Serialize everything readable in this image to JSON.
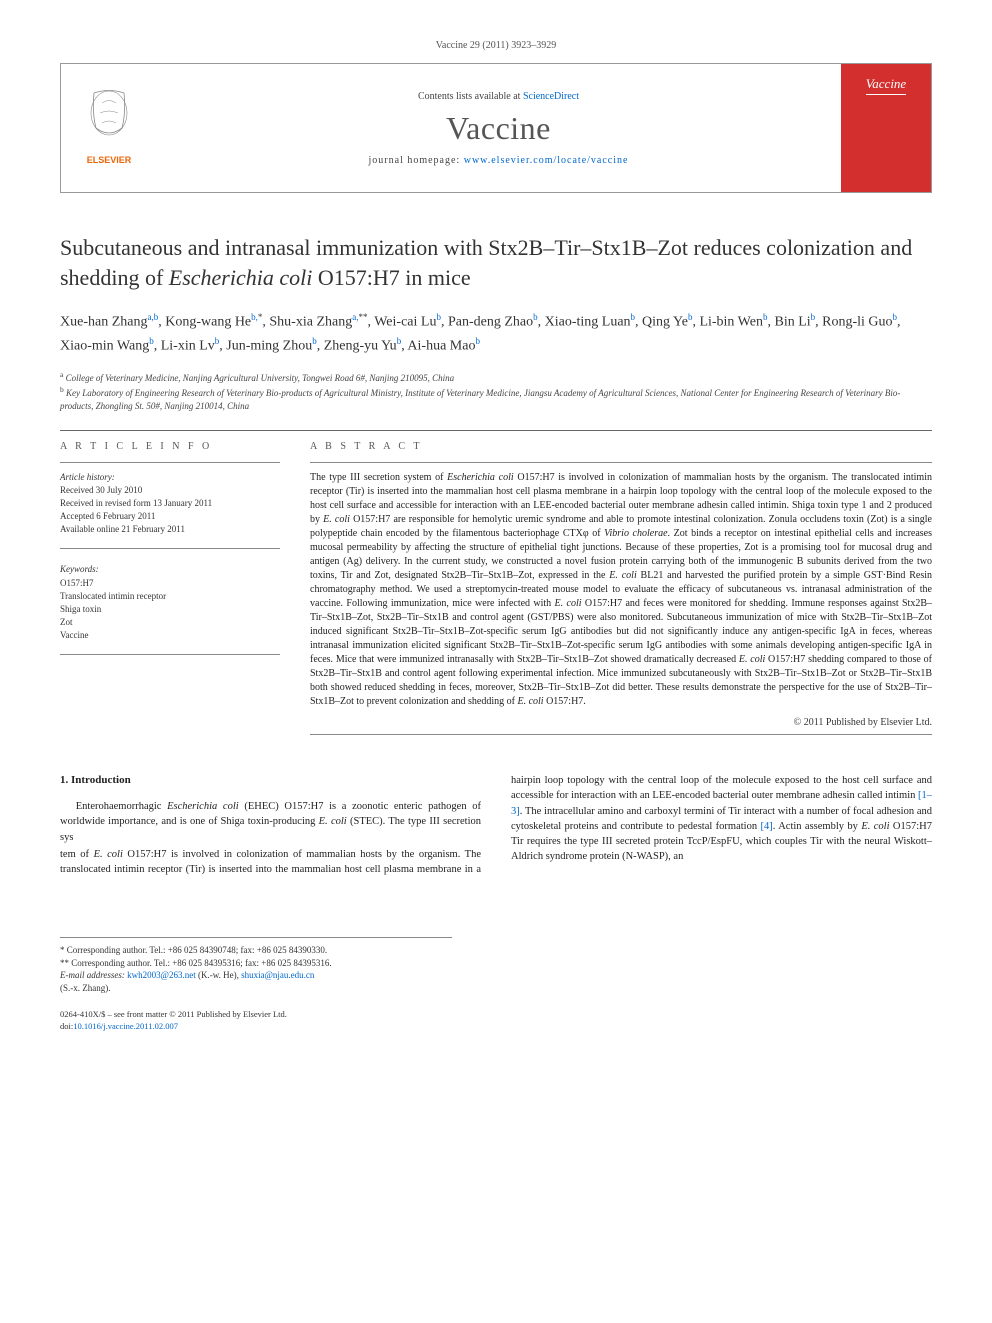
{
  "header": {
    "citation": "Vaccine 29 (2011) 3923–3929",
    "contents_prefix": "Contents lists available at ",
    "contents_link": "ScienceDirect",
    "journal": "Vaccine",
    "homepage_prefix": "journal homepage: ",
    "homepage_url": "www.elsevier.com/locate/vaccine",
    "cover_label": "Vaccine"
  },
  "title_html": "Subcutaneous and intranasal immunization with Stx2B–Tir–Stx1B–Zot reduces colonization and shedding of <em>Escherichia coli</em> O157:H7 in mice",
  "authors_html": "Xue-han Zhang<sup>a,b</sup>, Kong-wang He<sup>b,</sup><sup class='sup-sym'>*</sup>, Shu-xia Zhang<sup>a,</sup><sup class='sup-sym'>**</sup>, Wei-cai Lu<sup>b</sup>, Pan-deng Zhao<sup>b</sup>, Xiao-ting Luan<sup>b</sup>, Qing Ye<sup>b</sup>, Li-bin Wen<sup>b</sup>, Bin Li<sup>b</sup>, Rong-li Guo<sup>b</sup>, Xiao-min Wang<sup>b</sup>, Li-xin Lv<sup>b</sup>, Jun-ming Zhou<sup>b</sup>, Zheng-yu Yu<sup>b</sup>, Ai-hua Mao<sup>b</sup>",
  "affiliations": [
    {
      "sup": "a",
      "text": "College of Veterinary Medicine, Nanjing Agricultural University, Tongwei Road 6#, Nanjing 210095, China"
    },
    {
      "sup": "b",
      "text": "Key Laboratory of Engineering Research of Veterinary Bio-products of Agricultural Ministry, Institute of Veterinary Medicine, Jiangsu Academy of Agricultural Sciences, National Center for Engineering Research of Veterinary Bio-products, Zhongling St. 50#, Nanjing 210014, China"
    }
  ],
  "article_info": {
    "heading": "A R T I C L E   I N F O",
    "history_label": "Article history:",
    "history": [
      "Received 30 July 2010",
      "Received in revised form 13 January 2011",
      "Accepted 6 February 2011",
      "Available online 21 February 2011"
    ],
    "keywords_label": "Keywords:",
    "keywords": [
      "O157:H7",
      "Translocated intimin receptor",
      "Shiga toxin",
      "Zot",
      "Vaccine"
    ]
  },
  "abstract": {
    "heading": "A B S T R A C T",
    "text_html": "The type III secretion system of <em>Escherichia coli</em> O157:H7 is involved in colonization of mammalian hosts by the organism. The translocated intimin receptor (Tir) is inserted into the mammalian host cell plasma membrane in a hairpin loop topology with the central loop of the molecule exposed to the host cell surface and accessible for interaction with an LEE-encoded bacterial outer membrane adhesin called intimin. Shiga toxin type 1 and 2 produced by <em>E. coli</em> O157:H7 are responsible for hemolytic uremic syndrome and able to promote intestinal colonization. Zonula occludens toxin (Zot) is a single polypeptide chain encoded by the filamentous bacteriophage CTXφ of <em>Vibrio cholerae</em>. Zot binds a receptor on intestinal epithelial cells and increases mucosal permeability by affecting the structure of epithelial tight junctions. Because of these properties, Zot is a promising tool for mucosal drug and antigen (Ag) delivery. In the current study, we constructed a novel fusion protein carrying both of the immunogenic B subunits derived from the two toxins, Tir and Zot, designated Stx2B–Tir–Stx1B–Zot, expressed in the <em>E. coli</em> BL21 and harvested the purified protein by a simple GST·Bind Resin chromatography method. We used a streptomycin-treated mouse model to evaluate the efficacy of subcutaneous vs. intranasal administration of the vaccine. Following immunization, mice were infected with <em>E. coli</em> O157:H7 and feces were monitored for shedding. Immune responses against Stx2B–Tir–Stx1B–Zot, Stx2B–Tir–Stx1B and control agent (GST/PBS) were also monitored. Subcutaneous immunization of mice with Stx2B–Tir–Stx1B–Zot induced significant Stx2B–Tir–Stx1B–Zot-specific serum IgG antibodies but did not significantly induce any antigen-specific IgA in feces, whereas intranasal immunization elicited significant Stx2B–Tir–Stx1B–Zot-specific serum IgG antibodies with some animals developing antigen-specific IgA in feces. Mice that were immunized intranasally with Stx2B–Tir–Stx1B–Zot showed dramatically decreased <em>E. coli</em> O157:H7 shedding compared to those of Stx2B–Tir–Stx1B and control agent following experimental infection. Mice immunized subcutaneously with Stx2B–Tir–Stx1B–Zot or Stx2B–Tir–Stx1B both showed reduced shedding in feces, moreover, Stx2B–Tir–Stx1B–Zot did better. These results demonstrate the perspective for the use of Stx2B–Tir–Stx1B–Zot to prevent colonization and shedding of <em>E. coli</em> O157:H7.",
    "copyright": "© 2011 Published by Elsevier Ltd."
  },
  "intro": {
    "heading": "1.  Introduction",
    "para1_html": "Enterohaemorrhagic <em>Escherichia coli</em> (EHEC) O157:H7 is a zoonotic enteric pathogen of worldwide importance, and is one of Shiga toxin-producing <em>E. coli</em> (STEC). The type III secretion sys",
    "para2_html": "tem of <em>E. coli</em> O157:H7 is involved in colonization of mammalian hosts by the organism. The translocated intimin receptor (Tir) is inserted into the mammalian host cell plasma membrane in a hairpin loop topology with the central loop of the molecule exposed to the host cell surface and accessible for interaction with an LEE-encoded bacterial outer membrane adhesin called intimin <a href='#'>[1–3]</a>. The intracellular amino and carboxyl termini of Tir interact with a number of focal adhesion and cytoskeletal proteins and contribute to pedestal formation <a href='#'>[4]</a>. Actin assembly by <em>E. coli</em> O157:H7 Tir requires the type III secreted protein TccP/EspFU, which couples Tir with the neural Wiskott–Aldrich syndrome protein (N-WASP), an"
  },
  "footnotes": {
    "corr1": "* Corresponding author. Tel.: +86 025 84390748; fax: +86 025 84390330.",
    "corr2": "** Corresponding author. Tel.: +86 025 84395316; fax: +86 025 84395316.",
    "email_label": "E-mail addresses: ",
    "email1": "kwh2003@263.net",
    "email1_name": " (K.-w. He), ",
    "email2": "shuxia@njau.edu.cn",
    "email2_name": "(S.-x. Zhang)."
  },
  "footer": {
    "line1": "0264-410X/$ – see front matter © 2011 Published by Elsevier Ltd.",
    "doi_label": "doi:",
    "doi": "10.1016/j.vaccine.2011.02.007"
  },
  "colors": {
    "link": "#0066cc",
    "text": "#333333",
    "cover_bg": "#d32f2f",
    "elsevier_orange": "#ec6608",
    "border": "#999999"
  }
}
